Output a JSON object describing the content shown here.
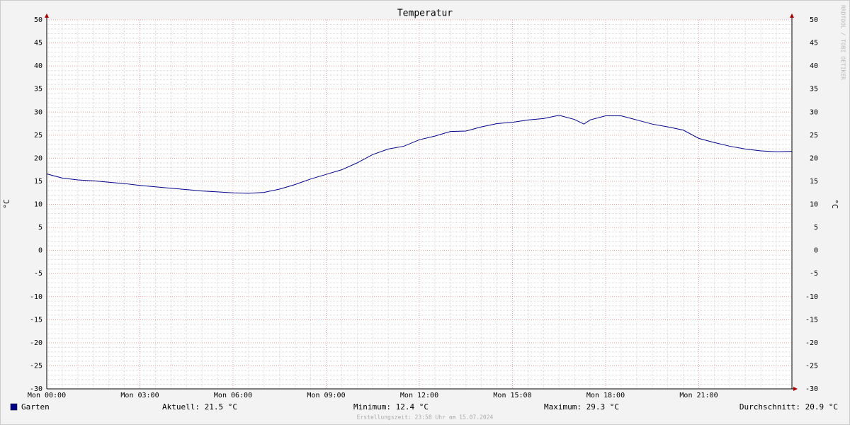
{
  "chart_data": {
    "type": "line",
    "title": "Temperatur",
    "y_label": "°C",
    "x": [
      0,
      0.5,
      1,
      1.5,
      2,
      2.5,
      3,
      3.5,
      4,
      4.5,
      5,
      5.5,
      6,
      6.5,
      7,
      7.5,
      8,
      8.5,
      9,
      9.5,
      10,
      10.5,
      11,
      11.5,
      12,
      12.5,
      13,
      13.5,
      14,
      14.5,
      15,
      15.5,
      16,
      16.5,
      17,
      17.3,
      17.5,
      18,
      18.5,
      19,
      19.5,
      20,
      20.5,
      21,
      21.5,
      22,
      22.5,
      23,
      23.5,
      24
    ],
    "series": [
      {
        "name": "Garten",
        "color": "#00008b",
        "values": [
          16.6,
          15.7,
          15.3,
          15.1,
          14.8,
          14.5,
          14.1,
          13.8,
          13.5,
          13.2,
          12.9,
          12.7,
          12.5,
          12.4,
          12.6,
          13.3,
          14.3,
          15.5,
          16.5,
          17.5,
          19.0,
          20.8,
          22.0,
          22.6,
          24.0,
          24.8,
          25.8,
          25.9,
          26.8,
          27.5,
          27.8,
          28.3,
          28.6,
          29.3,
          28.4,
          27.4,
          28.3,
          29.2,
          29.2,
          28.3,
          27.4,
          26.8,
          26.1,
          24.3,
          23.4,
          22.6,
          22.0,
          21.6,
          21.4,
          21.5
        ]
      }
    ],
    "xlim": [
      0,
      24
    ],
    "xticks": [
      {
        "value": 0,
        "label": "Mon 00:00"
      },
      {
        "value": 3,
        "label": "Mon 03:00"
      },
      {
        "value": 6,
        "label": "Mon 06:00"
      },
      {
        "value": 9,
        "label": "Mon 09:00"
      },
      {
        "value": 12,
        "label": "Mon 12:00"
      },
      {
        "value": 15,
        "label": "Mon 15:00"
      },
      {
        "value": 18,
        "label": "Mon 18:00"
      },
      {
        "value": 21,
        "label": "Mon 21:00"
      }
    ],
    "ylim": [
      -30,
      50
    ],
    "yticks": [
      -30,
      -25,
      -20,
      -15,
      -10,
      -5,
      0,
      5,
      10,
      15,
      20,
      25,
      30,
      35,
      40,
      45,
      50
    ],
    "grid": true,
    "stats": [
      "Aktuell: 21.5 °C",
      "Minimum: 12.4 °C",
      "Maximum: 29.3 °C",
      "Durchschnitt: 20.9 °C"
    ],
    "footer": "Erstellungszeit: 23:58 Uhr am 15.07.2024",
    "watermark": "RRDTOOL / TOBI OETIKER"
  }
}
